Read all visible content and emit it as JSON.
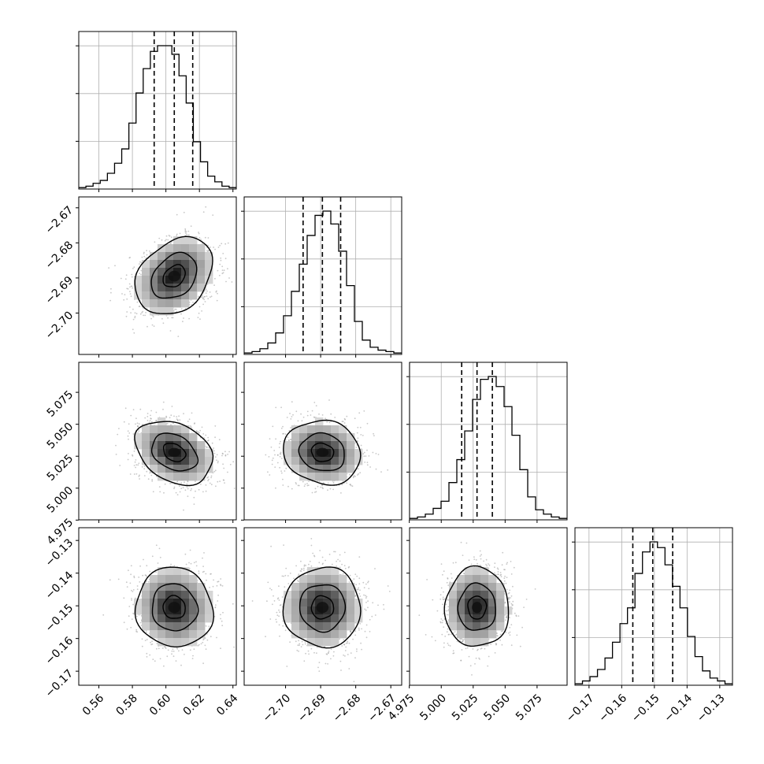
{
  "figure": {
    "type": "corner_plot",
    "params": [
      {
        "id": "p0",
        "range": [
          0.548,
          0.642
        ],
        "ticks": [
          0.56,
          0.58,
          0.6,
          0.62,
          0.64
        ],
        "tick_labels": [
          "0.56",
          "0.58",
          "0.60",
          "0.62",
          "0.64"
        ],
        "quantiles": [
          0.593,
          0.605,
          0.616
        ]
      },
      {
        "id": "p1",
        "range": [
          -2.7118,
          -2.6669
        ],
        "ticks": [
          -2.7,
          -2.69,
          -2.68,
          -2.67
        ],
        "tick_labels": [
          "−2.70",
          "−2.69",
          "−2.68",
          "−2.67"
        ],
        "quantiles": [
          -2.695,
          -2.6895,
          -2.6843
        ]
      },
      {
        "id": "p2",
        "range": [
          4.9752,
          5.0985
        ],
        "ticks": [
          4.975,
          5.0,
          5.025,
          5.05,
          5.075
        ],
        "tick_labels": [
          "4.975",
          "5.000",
          "5.025",
          "5.050",
          "5.075"
        ],
        "quantiles": [
          5.016,
          5.028,
          5.04
        ]
      },
      {
        "id": "p3",
        "range": [
          -0.1743,
          -0.1261
        ],
        "ticks": [
          -0.17,
          -0.16,
          -0.15,
          -0.14,
          -0.13
        ],
        "tick_labels": [
          "−0.17",
          "−0.16",
          "−0.15",
          "−0.14",
          "−0.13"
        ],
        "quantiles": [
          -0.1566,
          -0.1505,
          -0.1444
        ]
      }
    ],
    "line_color": "#000000",
    "grid_color": "#b0b0b0",
    "scatter_color": "#9a9a9a"
  },
  "chart_data": [
    {
      "type": "histogram",
      "param": "p0",
      "bin_range": [
        0.548,
        0.642
      ],
      "counts": [
        1,
        2,
        4,
        6,
        11,
        18,
        28,
        46,
        67,
        84,
        96,
        100,
        100,
        94,
        79,
        60,
        33,
        19,
        9,
        5,
        2,
        1
      ],
      "quantile_lines": [
        0.593,
        0.605,
        0.616
      ],
      "grid": true
    },
    {
      "type": "histogram",
      "param": "p1",
      "bin_range": [
        -2.7118,
        -2.6669
      ],
      "counts": [
        1,
        2,
        4,
        8,
        15,
        27,
        44,
        63,
        83,
        97,
        100,
        91,
        72,
        48,
        23,
        10,
        5,
        3,
        2,
        1
      ],
      "quantile_lines": [
        -2.695,
        -2.6895,
        -2.6843
      ],
      "grid": true
    },
    {
      "type": "histogram",
      "param": "p2",
      "bin_range": [
        4.9752,
        5.0985
      ],
      "counts": [
        1,
        2,
        4,
        8,
        13,
        26,
        42,
        62,
        84,
        98,
        100,
        93,
        79,
        59,
        35,
        16,
        7,
        4,
        2,
        1
      ],
      "quantile_lines": [
        5.016,
        5.028,
        5.04
      ],
      "grid": true
    },
    {
      "type": "histogram",
      "param": "p3",
      "bin_range": [
        -0.1743,
        -0.1261
      ],
      "counts": [
        1,
        3,
        6,
        11,
        19,
        30,
        43,
        54,
        78,
        93,
        100,
        96,
        84,
        69,
        54,
        34,
        20,
        10,
        5,
        3,
        1
      ],
      "quantile_lines": [
        -0.1566,
        -0.1505,
        -0.1444
      ],
      "grid": true
    },
    {
      "type": "density2d",
      "x": "p0",
      "y": "p1",
      "center": [
        0.605,
        -2.6895
      ],
      "sd": [
        0.0115,
        0.0055
      ],
      "corr": 0.3,
      "contour_levels": 3
    },
    {
      "type": "density2d",
      "x": "p0",
      "y": "p2",
      "center": [
        0.605,
        5.028
      ],
      "sd": [
        0.0115,
        0.0125
      ],
      "corr": -0.3,
      "contour_levels": 3
    },
    {
      "type": "density2d",
      "x": "p1",
      "y": "p2",
      "center": [
        -2.6895,
        5.028
      ],
      "sd": [
        0.0055,
        0.0125
      ],
      "corr": -0.1,
      "contour_levels": 3
    },
    {
      "type": "density2d",
      "x": "p0",
      "y": "p3",
      "center": [
        0.605,
        -0.1505
      ],
      "sd": [
        0.0115,
        0.0061
      ],
      "corr": -0.05,
      "contour_levels": 3
    },
    {
      "type": "density2d",
      "x": "p1",
      "y": "p3",
      "center": [
        -2.6895,
        -0.1505
      ],
      "sd": [
        0.0055,
        0.0061
      ],
      "corr": 0.0,
      "contour_levels": 3
    },
    {
      "type": "density2d",
      "x": "p2",
      "y": "p3",
      "center": [
        5.028,
        -0.1505
      ],
      "sd": [
        0.0125,
        0.0061
      ],
      "corr": 0.0,
      "contour_levels": 3
    }
  ]
}
